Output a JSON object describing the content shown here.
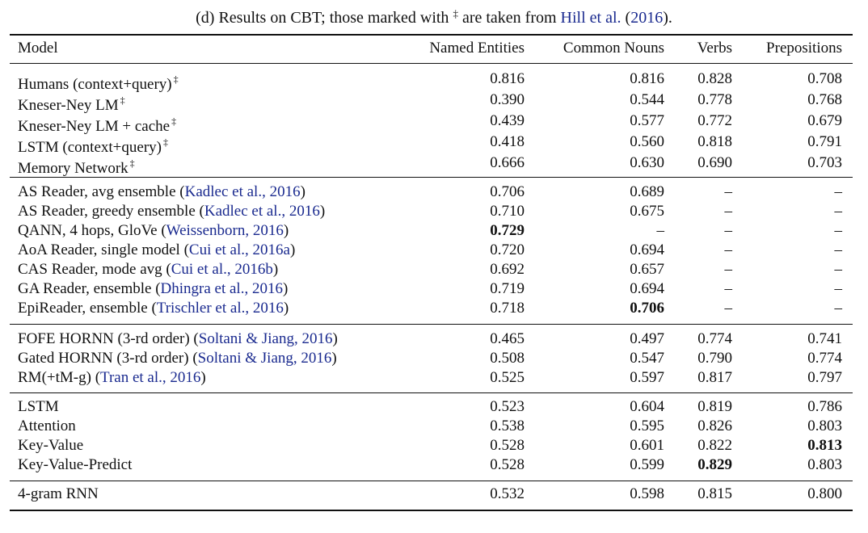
{
  "caption": {
    "prefix": "(d) Results on CBT; those marked with ",
    "dagger": "‡",
    "middle": " are taken from ",
    "cite_name": "Hill et al.",
    "open_paren": " (",
    "cite_year": "2016",
    "close": ")."
  },
  "headers": {
    "model": "Model",
    "ne": "Named Entities",
    "cn": "Common Nouns",
    "vb": "Verbs",
    "pp": "Prepositions"
  },
  "groups": [
    [
      {
        "model": "Humans (context+query)",
        "dagger": "‡",
        "ne": "0.816",
        "cn": "0.816",
        "vb": "0.828",
        "pp": "0.708"
      },
      {
        "model": "Kneser-Ney LM",
        "dagger": "‡",
        "ne": "0.390",
        "cn": "0.544",
        "vb": "0.778",
        "pp": "0.768"
      },
      {
        "model": "Kneser-Ney LM + cache",
        "dagger": "‡",
        "ne": "0.439",
        "cn": "0.577",
        "vb": "0.772",
        "pp": "0.679"
      },
      {
        "model": "LSTM (context+query)",
        "dagger": "‡",
        "ne": "0.418",
        "cn": "0.560",
        "vb": "0.818",
        "pp": "0.791"
      },
      {
        "model": "Memory Network",
        "dagger": "‡",
        "ne": "0.666",
        "cn": "0.630",
        "vb": "0.690",
        "pp": "0.703"
      }
    ],
    [
      {
        "model": "AS Reader, avg ensemble ",
        "cite": "Kadlec et al., 2016",
        "ne": "0.706",
        "cn": "0.689",
        "vb": "–",
        "pp": "–"
      },
      {
        "model": "AS Reader, greedy ensemble ",
        "cite": "Kadlec et al., 2016",
        "ne": "0.710",
        "cn": "0.675",
        "vb": "–",
        "pp": "–"
      },
      {
        "model": "QANN, 4 hops, GloVe ",
        "cite": "Weissenborn, 2016",
        "ne": "0.729",
        "ne_bold": true,
        "cn": "–",
        "vb": "–",
        "pp": "–"
      },
      {
        "model": "AoA Reader, single model ",
        "cite": "Cui et al., 2016a",
        "ne": "0.720",
        "cn": "0.694",
        "vb": "–",
        "pp": "–"
      },
      {
        "model": "CAS Reader, mode avg ",
        "cite": "Cui et al., 2016b",
        "ne": "0.692",
        "cn": "0.657",
        "vb": "–",
        "pp": "–"
      },
      {
        "model": "GA Reader, ensemble ",
        "cite": "Dhingra et al., 2016",
        "ne": "0.719",
        "cn": "0.694",
        "vb": "–",
        "pp": "–"
      },
      {
        "model": "EpiReader, ensemble ",
        "cite": "Trischler et al., 2016",
        "ne": "0.718",
        "cn": "0.706",
        "cn_bold": true,
        "vb": "–",
        "pp": "–"
      }
    ],
    [
      {
        "model": "FOFE HORNN (3-rd order) ",
        "cite": "Soltani & Jiang, 2016",
        "ne": "0.465",
        "cn": "0.497",
        "vb": "0.774",
        "pp": "0.741"
      },
      {
        "model": "Gated HORNN (3-rd order) ",
        "cite": "Soltani & Jiang, 2016",
        "ne": "0.508",
        "cn": "0.547",
        "vb": "0.790",
        "pp": "0.774"
      },
      {
        "model": "RM(+tM-g) ",
        "cite": "Tran et al., 2016",
        "ne": "0.525",
        "cn": "0.597",
        "vb": "0.817",
        "pp": "0.797"
      }
    ],
    [
      {
        "model": "LSTM",
        "ne": "0.523",
        "cn": "0.604",
        "vb": "0.819",
        "pp": "0.786"
      },
      {
        "model": "Attention",
        "ne": "0.538",
        "cn": "0.595",
        "vb": "0.826",
        "pp": "0.803"
      },
      {
        "model": "Key-Value",
        "ne": "0.528",
        "cn": "0.601",
        "vb": "0.822",
        "pp": "0.813",
        "pp_bold": true
      },
      {
        "model": "Key-Value-Predict",
        "ne": "0.528",
        "cn": "0.599",
        "vb": "0.829",
        "vb_bold": true,
        "pp": "0.803"
      }
    ],
    [
      {
        "model": "4-gram RNN",
        "ne": "0.532",
        "cn": "0.598",
        "vb": "0.815",
        "pp": "0.800"
      }
    ]
  ]
}
